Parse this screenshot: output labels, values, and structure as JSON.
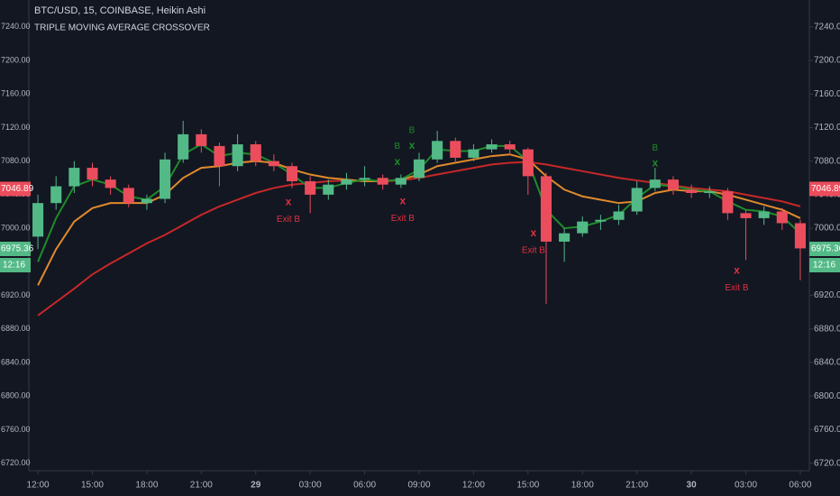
{
  "chart_data": {
    "type": "candlestick",
    "title": "BTC/USD, 15, COINBASE, Heikin Ashi",
    "subtitle": "TRIPLE MOVING AVERAGE CROSSOVER",
    "x": [
      0,
      1,
      2,
      3,
      4,
      5,
      6,
      7,
      8,
      9,
      10,
      11,
      12,
      13,
      14,
      15,
      16,
      17,
      18,
      19,
      20,
      21,
      22,
      23,
      24,
      25,
      26,
      27,
      28,
      29,
      30,
      31,
      32,
      33,
      34,
      35,
      36,
      37,
      38,
      39,
      40,
      41,
      42
    ],
    "open": [
      6990,
      7030,
      7050,
      7072,
      7058,
      7048,
      7030,
      7035,
      7082,
      7112,
      7098,
      7074,
      7100,
      7080,
      7074,
      7056,
      7040,
      7052,
      7058,
      7060,
      7052,
      7060,
      7082,
      7104,
      7084,
      7094,
      7100,
      7094,
      7062,
      6984,
      6994,
      7008,
      7010,
      7020,
      7048,
      7058,
      7046,
      7042,
      7044,
      7018,
      7012,
      7020,
      7006
    ],
    "high": [
      7040,
      7062,
      7080,
      7078,
      7062,
      7052,
      7040,
      7090,
      7128,
      7118,
      7102,
      7112,
      7104,
      7088,
      7078,
      7062,
      7058,
      7066,
      7074,
      7064,
      7064,
      7090,
      7116,
      7108,
      7100,
      7106,
      7104,
      7096,
      7066,
      7000,
      7014,
      7016,
      7028,
      7056,
      7072,
      7062,
      7052,
      7050,
      7048,
      7022,
      7026,
      7024,
      7010
    ],
    "low": [
      6975,
      7022,
      7042,
      7050,
      7040,
      7025,
      7022,
      7030,
      7078,
      7090,
      7050,
      7068,
      7074,
      7068,
      7048,
      7018,
      7034,
      7046,
      7050,
      7046,
      7048,
      7056,
      7078,
      7078,
      7080,
      7090,
      7088,
      7040,
      6910,
      6960,
      6990,
      6998,
      7004,
      7016,
      7044,
      7040,
      7036,
      7036,
      7010,
      6962,
      7004,
      6998,
      6938
    ],
    "close": [
      7030,
      7050,
      7072,
      7058,
      7048,
      7030,
      7035,
      7082,
      7112,
      7098,
      7074,
      7100,
      7080,
      7074,
      7056,
      7040,
      7052,
      7058,
      7060,
      7052,
      7060,
      7082,
      7104,
      7084,
      7094,
      7100,
      7094,
      7062,
      6984,
      6994,
      7008,
      7010,
      7020,
      7048,
      7058,
      7046,
      7042,
      7044,
      7018,
      7012,
      7020,
      7006,
      6976
    ],
    "up_color": "#53b987",
    "down_color": "#eb4d5c",
    "lines": [
      {
        "color": "#c62828",
        "values": [
          6896,
          6912,
          6928,
          6945,
          6958,
          6970,
          6982,
          6992,
          7004,
          7016,
          7026,
          7034,
          7042,
          7048,
          7052,
          7054,
          7056,
          7057,
          7056,
          7056,
          7057,
          7060,
          7064,
          7068,
          7072,
          7076,
          7078,
          7079,
          7076,
          7072,
          7068,
          7064,
          7060,
          7057,
          7054,
          7051,
          7048,
          7046,
          7044,
          7040,
          7036,
          7032,
          7026
        ]
      },
      {
        "color": "#e08a2c",
        "values": [
          6932,
          6975,
          7008,
          7024,
          7030,
          7030,
          7030,
          7040,
          7060,
          7072,
          7074,
          7078,
          7080,
          7078,
          7070,
          7064,
          7060,
          7058,
          7056,
          7056,
          7058,
          7064,
          7074,
          7078,
          7082,
          7086,
          7088,
          7082,
          7062,
          7046,
          7038,
          7034,
          7030,
          7032,
          7042,
          7046,
          7044,
          7044,
          7040,
          7034,
          7028,
          7022,
          7012
        ]
      },
      {
        "color": "#1e8c2a",
        "values": [
          6960,
          7012,
          7050,
          7058,
          7052,
          7038,
          7034,
          7050,
          7088,
          7100,
          7086,
          7090,
          7088,
          7078,
          7064,
          7048,
          7048,
          7054,
          7058,
          7056,
          7058,
          7070,
          7094,
          7092,
          7092,
          7098,
          7098,
          7080,
          7022,
          7000,
          7002,
          7008,
          7016,
          7036,
          7052,
          7050,
          7046,
          7044,
          7032,
          7022,
          7020,
          7014,
          6994
        ]
      }
    ],
    "signals": [
      {
        "kind": "entry",
        "marker": "x",
        "label": "B",
        "color": "#1e8c2a",
        "x": 19.8,
        "y": 7079
      },
      {
        "kind": "entry",
        "marker": "x",
        "label": "B",
        "color": "#1e8c2a",
        "x": 20.6,
        "y": 7098
      },
      {
        "kind": "entry",
        "marker": "x",
        "label": "B",
        "color": "#1e8c2a",
        "x": 34.0,
        "y": 7077
      },
      {
        "kind": "exit",
        "marker": "x",
        "label": "Exit B",
        "color": "#e0313f",
        "x": 13.8,
        "y": 7031
      },
      {
        "kind": "exit",
        "marker": "x",
        "label": "Exit B",
        "color": "#e0313f",
        "x": 20.1,
        "y": 7032
      },
      {
        "kind": "exit",
        "marker": "x",
        "label": "Exit B",
        "color": "#e0313f",
        "x": 27.3,
        "y": 6994
      },
      {
        "kind": "exit",
        "marker": "x",
        "label": "Exit B",
        "color": "#e0313f",
        "x": 38.5,
        "y": 6949
      }
    ],
    "price_labels": [
      {
        "value": 7046.89,
        "color": "#eb4d5c"
      },
      {
        "value": 6975.36,
        "color": "#53b987"
      }
    ],
    "countdown": "12:16",
    "xlim": [
      -0.5,
      42.5
    ],
    "xticks": [
      {
        "value": 0,
        "label": "12:00"
      },
      {
        "value": 3,
        "label": "15:00"
      },
      {
        "value": 6,
        "label": "18:00"
      },
      {
        "value": 9,
        "label": "21:00"
      },
      {
        "value": 12,
        "label": "29"
      },
      {
        "value": 15,
        "label": "03:00"
      },
      {
        "value": 18,
        "label": "06:00"
      },
      {
        "value": 21,
        "label": "09:00"
      },
      {
        "value": 24,
        "label": "12:00"
      },
      {
        "value": 27,
        "label": "15:00"
      },
      {
        "value": 30,
        "label": "18:00"
      },
      {
        "value": 33,
        "label": "21:00"
      },
      {
        "value": 36,
        "label": "30"
      },
      {
        "value": 39,
        "label": "03:00"
      },
      {
        "value": 42,
        "label": "06:00"
      }
    ],
    "ylim": [
      6711,
      7272
    ],
    "yticks": [
      {
        "value": 6720,
        "label": "6720.00"
      },
      {
        "value": 6760,
        "label": "6760.00"
      },
      {
        "value": 6800,
        "label": "6800.00"
      },
      {
        "value": 6840,
        "label": "6840.00"
      },
      {
        "value": 6880,
        "label": "6880.00"
      },
      {
        "value": 6920,
        "label": "6920.00"
      },
      {
        "value": 6960,
        "label": "6960.00"
      },
      {
        "value": 7000,
        "label": "7000.00"
      },
      {
        "value": 7040,
        "label": "7040.00"
      },
      {
        "value": 7080,
        "label": "7080.00"
      },
      {
        "value": 7120,
        "label": "7120.00"
      },
      {
        "value": 7160,
        "label": "7160.00"
      },
      {
        "value": 7200,
        "label": "7200.00"
      },
      {
        "value": 7240,
        "label": "7240.00"
      }
    ]
  }
}
